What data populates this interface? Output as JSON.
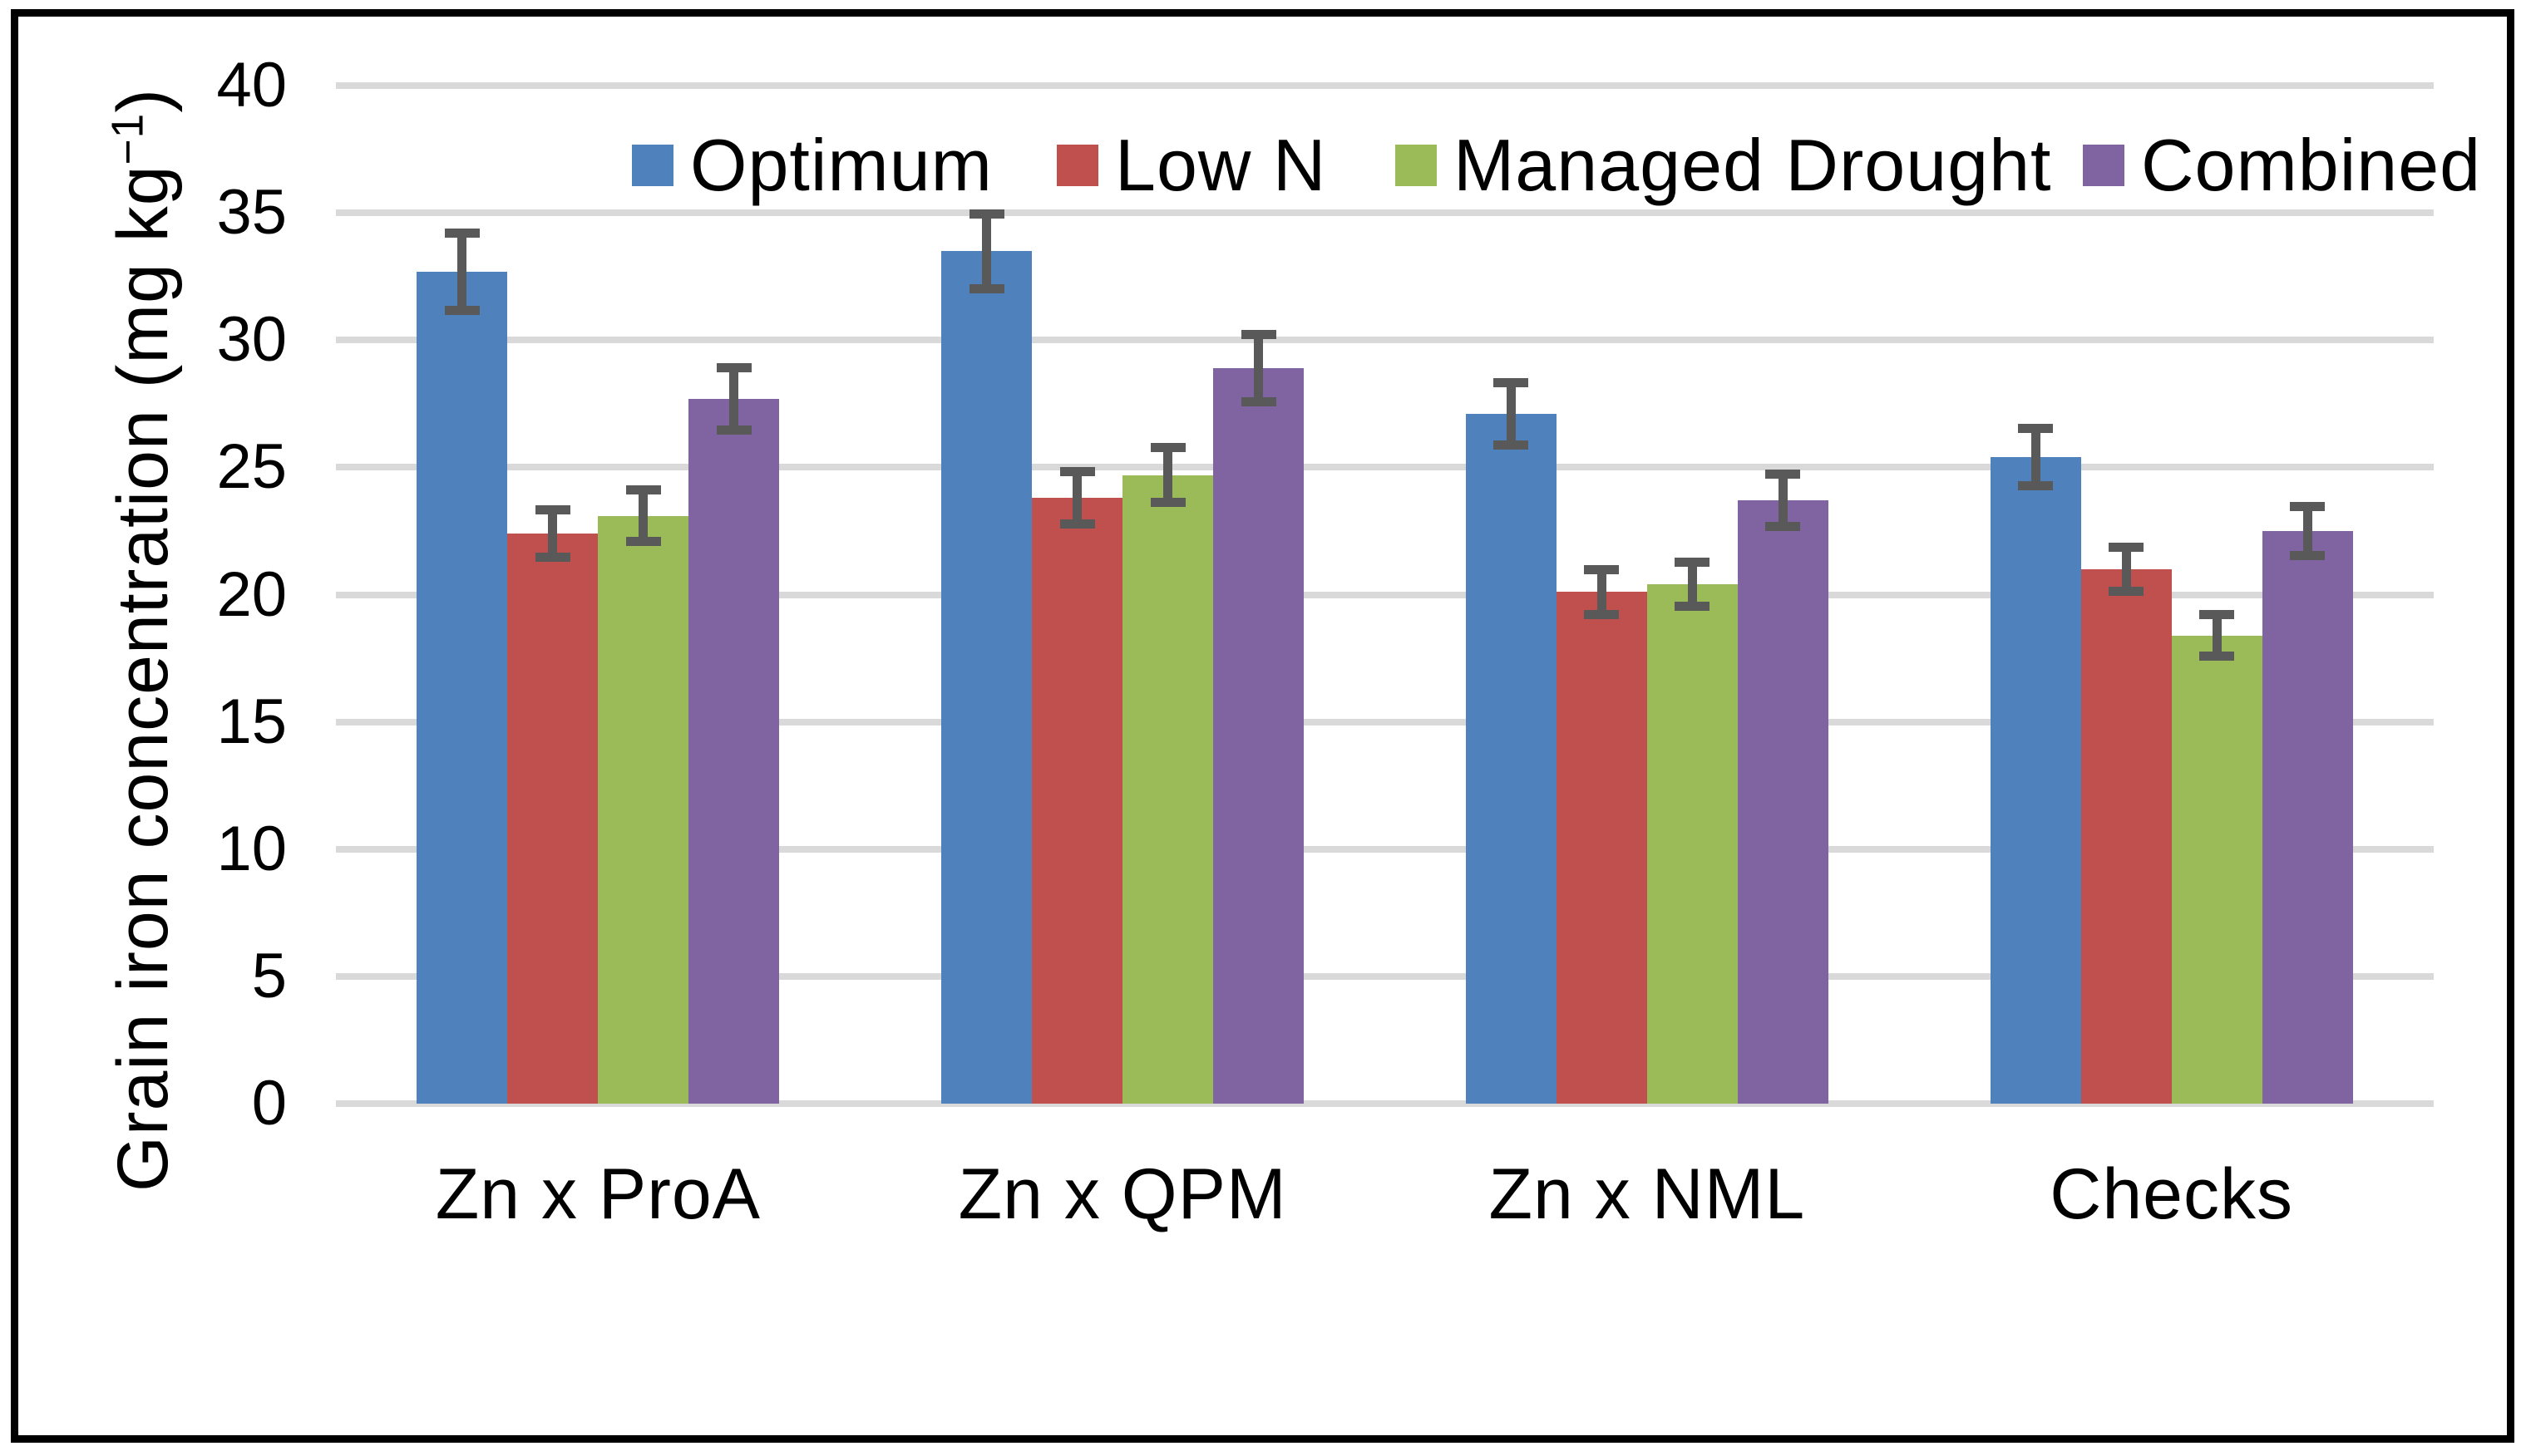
{
  "colors": {
    "optimum": "#4F81BD",
    "low_n": "#C0504D",
    "managed_drought": "#9BBB59",
    "combined": "#8064A2",
    "error_bar": "#595959",
    "gridline": "#D9D9D9",
    "border": "#000000",
    "text": "#000000",
    "background": "#FFFFFF"
  },
  "y_axis": {
    "title_main": "Grain iron concentration (mg kg",
    "title_sup": "−1",
    "title_close": ")",
    "tick_labels": [
      "0",
      "5",
      "10",
      "15",
      "20",
      "25",
      "30",
      "35",
      "40"
    ]
  },
  "chart_data": {
    "type": "bar",
    "title": "",
    "xlabel": "",
    "ylabel": "Grain iron concentration (mg kg-1)",
    "ylim": [
      0,
      40
    ],
    "ytick_step": 5,
    "grid": true,
    "legend_position": "top",
    "error_bars": true,
    "categories": [
      "Zn x ProA",
      "Zn x QPM",
      "Zn x NML",
      "Checks"
    ],
    "series": [
      {
        "name": "Optimum",
        "color": "#4F81BD",
        "values": [
          32.7,
          33.5,
          27.1,
          25.4
        ],
        "errors": [
          1.7,
          1.65,
          1.4,
          1.3
        ]
      },
      {
        "name": "Low N",
        "color": "#C0504D",
        "values": [
          22.4,
          23.8,
          20.1,
          21.0
        ],
        "errors": [
          1.1,
          1.2,
          1.05,
          1.05
        ]
      },
      {
        "name": "Managed Drought",
        "color": "#9BBB59",
        "values": [
          23.1,
          24.7,
          20.4,
          18.4
        ],
        "errors": [
          1.2,
          1.25,
          1.05,
          1.0
        ]
      },
      {
        "name": "Combined",
        "color": "#8064A2",
        "values": [
          27.7,
          28.9,
          23.7,
          22.5
        ],
        "errors": [
          1.4,
          1.5,
          1.2,
          1.15
        ]
      }
    ]
  }
}
